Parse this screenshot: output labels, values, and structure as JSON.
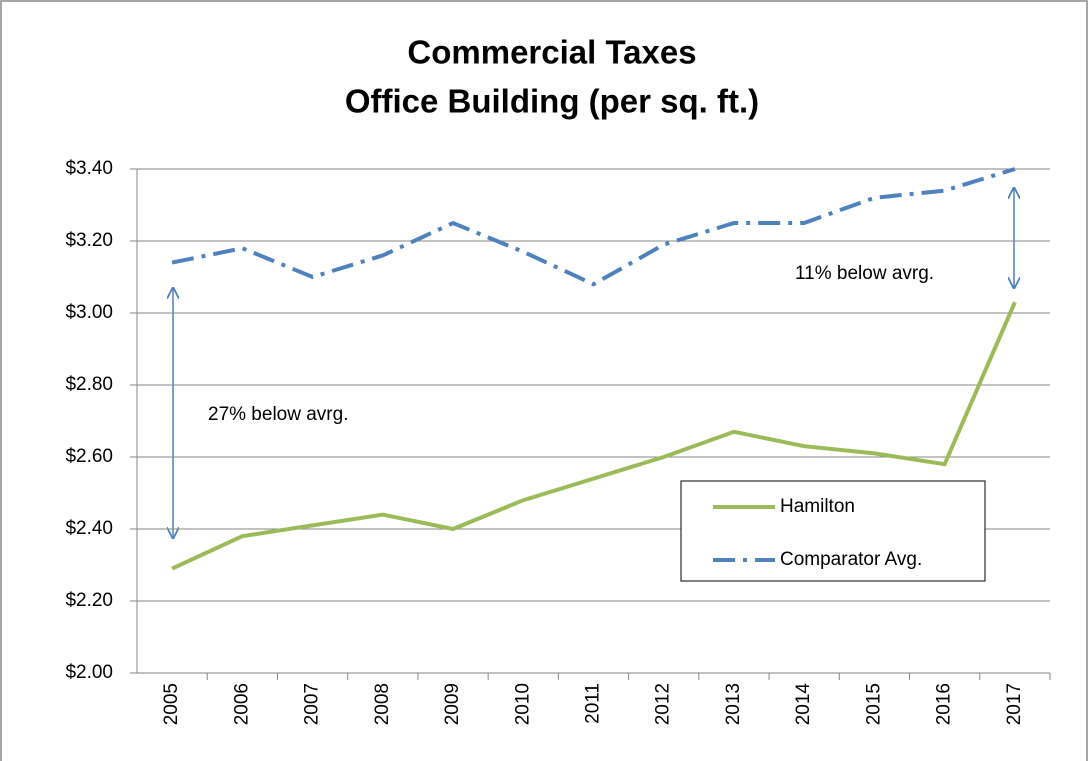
{
  "chart_data": {
    "type": "line",
    "title": [
      "Commercial Taxes",
      "Office Building (per sq. ft.)"
    ],
    "categories": [
      "2005",
      "2006",
      "2007",
      "2008",
      "2009",
      "2010",
      "2011",
      "2012",
      "2013",
      "2014",
      "2015",
      "2016",
      "2017"
    ],
    "series": [
      {
        "name": "Hamilton",
        "color": "#9bbb59",
        "dash": "solid",
        "values": [
          2.29,
          2.38,
          2.41,
          2.44,
          2.4,
          2.48,
          2.54,
          2.6,
          2.67,
          2.63,
          2.61,
          2.58,
          3.03
        ]
      },
      {
        "name": "Comparator Avg.",
        "color": "#4f81bd",
        "dash": "dash-dot",
        "values": [
          3.14,
          3.18,
          3.1,
          3.16,
          3.25,
          3.17,
          3.08,
          3.19,
          3.25,
          3.25,
          3.32,
          3.34,
          3.4
        ]
      }
    ],
    "ylim": [
      2.0,
      3.4
    ],
    "yticks": [
      {
        "value": 2.0,
        "label": "$2.00"
      },
      {
        "value": 2.2,
        "label": "$2.20"
      },
      {
        "value": 2.4,
        "label": "$2.40"
      },
      {
        "value": 2.6,
        "label": "$2.60"
      },
      {
        "value": 2.8,
        "label": "$2.80"
      },
      {
        "value": 3.0,
        "label": "$3.00"
      },
      {
        "value": 3.2,
        "label": "$3.20"
      },
      {
        "value": 3.4,
        "label": "$3.40"
      }
    ],
    "grid": true,
    "legend": "lower-right",
    "annotations": [
      "27% below avrg.",
      "11% below avrg."
    ]
  }
}
